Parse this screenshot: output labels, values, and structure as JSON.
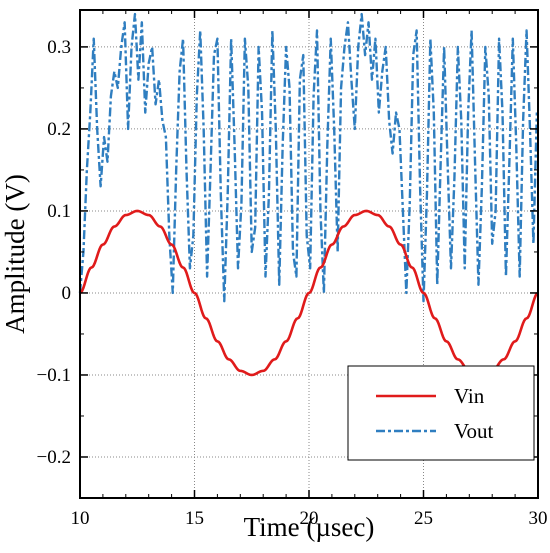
{
  "chart_data": {
    "type": "line",
    "xlabel": "Time (µsec)",
    "ylabel": "Amplitude (V)",
    "xlim": [
      10,
      30
    ],
    "ylim": [
      -0.25,
      0.345
    ],
    "xticks": [
      10,
      15,
      20,
      25,
      30
    ],
    "xtick_labels": [
      "10",
      "15",
      "20",
      "25",
      "30"
    ],
    "yticks": [
      -0.2,
      -0.1,
      0,
      0.1,
      0.2,
      0.3
    ],
    "ytick_labels": [
      "−0.2",
      "−0.1",
      "0",
      "0.1",
      "0.2",
      "0.3"
    ],
    "grid": true,
    "legend": {
      "position": "bottom-right"
    },
    "series": [
      {
        "name": "Vin",
        "color": "#e01b1b",
        "style": "solid",
        "x": [
          10.0,
          10.5,
          11.0,
          11.5,
          12.0,
          12.5,
          13.0,
          13.5,
          14.0,
          14.5,
          15.0,
          15.5,
          16.0,
          16.5,
          17.0,
          17.5,
          18.0,
          18.5,
          19.0,
          19.5,
          20.0,
          20.5,
          21.0,
          21.5,
          22.0,
          22.5,
          23.0,
          23.5,
          24.0,
          24.5,
          25.0,
          25.5,
          26.0,
          26.5,
          27.0,
          27.5,
          28.0,
          28.5,
          29.0,
          29.5,
          30.0
        ],
        "y": [
          0.0,
          0.031,
          0.059,
          0.081,
          0.095,
          0.1,
          0.095,
          0.081,
          0.059,
          0.031,
          0.0,
          -0.031,
          -0.059,
          -0.081,
          -0.095,
          -0.1,
          -0.095,
          -0.081,
          -0.059,
          -0.031,
          0.0,
          0.031,
          0.059,
          0.081,
          0.095,
          0.1,
          0.095,
          0.081,
          0.059,
          0.031,
          0.0,
          -0.031,
          -0.059,
          -0.081,
          -0.095,
          -0.1,
          -0.095,
          -0.081,
          -0.059,
          -0.031,
          0.0
        ]
      },
      {
        "name": "Vout",
        "color": "#2f7ec0",
        "style": "dashdot",
        "x": [
          10.0,
          10.15,
          10.3,
          10.45,
          10.6,
          10.75,
          10.9,
          11.05,
          11.2,
          11.35,
          11.5,
          11.65,
          11.8,
          11.95,
          12.1,
          12.25,
          12.4,
          12.55,
          12.7,
          12.85,
          13.0,
          13.15,
          13.3,
          13.45,
          13.6,
          13.75,
          13.9,
          14.05,
          14.2,
          14.35,
          14.5,
          14.65,
          14.8,
          14.95,
          15.1,
          15.25,
          15.4,
          15.55,
          15.7,
          15.85,
          16.0,
          16.15,
          16.3,
          16.45,
          16.6,
          16.75,
          16.9,
          17.05,
          17.2,
          17.35,
          17.5,
          17.65,
          17.8,
          17.95,
          18.1,
          18.25,
          18.4,
          18.55,
          18.7,
          18.85,
          19.0,
          19.15,
          19.3,
          19.45,
          19.6,
          19.75,
          19.9,
          20.05,
          20.2,
          20.35,
          20.5,
          20.65,
          20.8,
          20.95,
          21.1,
          21.25,
          21.4,
          21.55,
          21.7,
          21.85,
          22.0,
          22.15,
          22.3,
          22.45,
          22.6,
          22.75,
          22.9,
          23.05,
          23.2,
          23.35,
          23.5,
          23.65,
          23.8,
          23.95,
          24.1,
          24.25,
          24.4,
          24.55,
          24.7,
          24.85,
          25.0,
          25.15,
          25.3,
          25.45,
          25.6,
          25.75,
          25.9,
          26.05,
          26.2,
          26.35,
          26.5,
          26.65,
          26.8,
          26.95,
          27.1,
          27.25,
          27.4,
          27.55,
          27.7,
          27.85,
          28.0,
          28.15,
          28.3,
          28.45,
          28.6,
          28.75,
          28.9,
          29.05,
          29.2,
          29.35,
          29.5,
          29.65,
          29.8,
          29.95
        ],
        "y": [
          0.0,
          0.05,
          0.15,
          0.22,
          0.31,
          0.2,
          0.13,
          0.19,
          0.16,
          0.24,
          0.27,
          0.25,
          0.3,
          0.33,
          0.2,
          0.3,
          0.34,
          0.26,
          0.33,
          0.22,
          0.28,
          0.3,
          0.23,
          0.26,
          0.21,
          0.19,
          0.07,
          0.0,
          0.15,
          0.27,
          0.31,
          0.15,
          0.03,
          0.07,
          0.24,
          0.32,
          0.2,
          0.02,
          0.15,
          0.29,
          0.31,
          0.12,
          -0.01,
          0.12,
          0.31,
          0.18,
          0.03,
          0.11,
          0.31,
          0.25,
          0.05,
          0.08,
          0.3,
          0.22,
          0.02,
          0.12,
          0.32,
          0.2,
          0.01,
          0.18,
          0.3,
          0.25,
          0.05,
          0.02,
          0.26,
          0.29,
          0.07,
          0.03,
          0.24,
          0.32,
          0.1,
          0.0,
          0.18,
          0.31,
          0.2,
          0.05,
          0.25,
          0.3,
          0.33,
          0.26,
          0.2,
          0.3,
          0.34,
          0.29,
          0.33,
          0.26,
          0.31,
          0.22,
          0.27,
          0.3,
          0.21,
          0.17,
          0.22,
          0.2,
          0.1,
          0.0,
          0.11,
          0.29,
          0.32,
          0.13,
          -0.01,
          0.12,
          0.31,
          0.22,
          0.01,
          0.16,
          0.3,
          0.16,
          0.03,
          0.14,
          0.3,
          0.21,
          0.03,
          0.22,
          0.32,
          0.16,
          0.01,
          0.13,
          0.3,
          0.24,
          0.06,
          0.1,
          0.31,
          0.22,
          0.02,
          0.16,
          0.31,
          0.18,
          0.02,
          0.21,
          0.32,
          0.2,
          0.06,
          0.22
        ]
      }
    ]
  }
}
